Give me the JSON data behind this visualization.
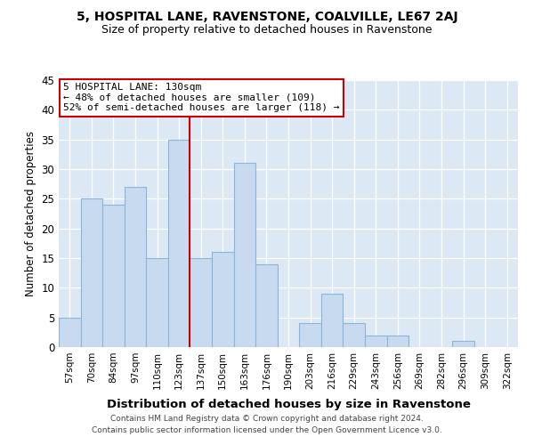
{
  "title1": "5, HOSPITAL LANE, RAVENSTONE, COALVILLE, LE67 2AJ",
  "title2": "Size of property relative to detached houses in Ravenstone",
  "xlabel": "Distribution of detached houses by size in Ravenstone",
  "ylabel": "Number of detached properties",
  "bin_labels": [
    "57sqm",
    "70sqm",
    "84sqm",
    "97sqm",
    "110sqm",
    "123sqm",
    "137sqm",
    "150sqm",
    "163sqm",
    "176sqm",
    "190sqm",
    "203sqm",
    "216sqm",
    "229sqm",
    "243sqm",
    "256sqm",
    "269sqm",
    "282sqm",
    "296sqm",
    "309sqm",
    "322sqm"
  ],
  "bar_values": [
    5,
    25,
    24,
    27,
    15,
    35,
    15,
    16,
    31,
    14,
    0,
    4,
    9,
    4,
    2,
    2,
    0,
    0,
    1,
    0,
    0
  ],
  "bar_color": "#c8daf0",
  "bar_edge_color": "#8ab4d8",
  "reference_line_x": 5.5,
  "ref_line_color": "#cc0000",
  "annotation_title": "5 HOSPITAL LANE: 130sqm",
  "annotation_line1": "← 48% of detached houses are smaller (109)",
  "annotation_line2": "52% of semi-detached houses are larger (118) →",
  "annotation_box_edgecolor": "#cc0000",
  "ylim": [
    0,
    45
  ],
  "yticks": [
    0,
    5,
    10,
    15,
    20,
    25,
    30,
    35,
    40,
    45
  ],
  "grid_color": "#ffffff",
  "bg_color": "#dce9f5",
  "fig_bg": "#ffffff",
  "footer1": "Contains HM Land Registry data © Crown copyright and database right 2024.",
  "footer2": "Contains public sector information licensed under the Open Government Licence v3.0."
}
